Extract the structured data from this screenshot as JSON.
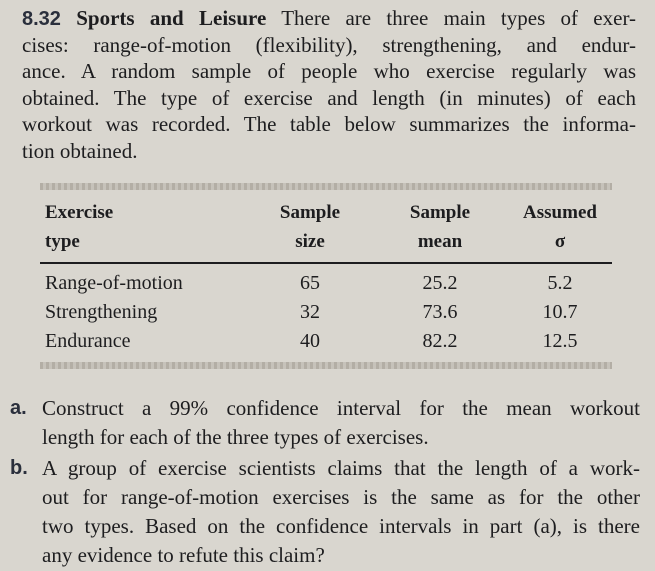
{
  "problem": {
    "number": "8.32",
    "title": "Sports and Leisure",
    "intro_lines": [
      "There are three main types of exer-",
      "cises: range-of-motion (flexibility), strengthening, and endur-",
      "ance. A random sample of people who exercise regularly was",
      "obtained. The type of exercise and length (in minutes) of each",
      "workout was recorded. The table below summarizes the informa-",
      "tion obtained."
    ]
  },
  "table": {
    "header": [
      [
        "Exercise",
        "type"
      ],
      [
        "Sample",
        "size"
      ],
      [
        "Sample",
        "mean"
      ],
      [
        "Assumed",
        "σ"
      ]
    ],
    "rows": [
      [
        "Range-of-motion",
        65,
        25.2,
        5.2
      ],
      [
        "Strengthening",
        32,
        73.6,
        10.7
      ],
      [
        "Endurance",
        40,
        82.2,
        12.5
      ]
    ]
  },
  "parts": [
    {
      "label": "a.",
      "lines": [
        "Construct a 99% confidence interval for the mean workout",
        "length for each of the three types of exercises."
      ]
    },
    {
      "label": "b.",
      "lines": [
        "A group of exercise scientists claims that the length of a work-",
        "out for range-of-motion exercises is the same as for the other",
        "two types. Based on the confidence intervals in part (a), is there",
        "any evidence to refute this claim?"
      ]
    }
  ]
}
